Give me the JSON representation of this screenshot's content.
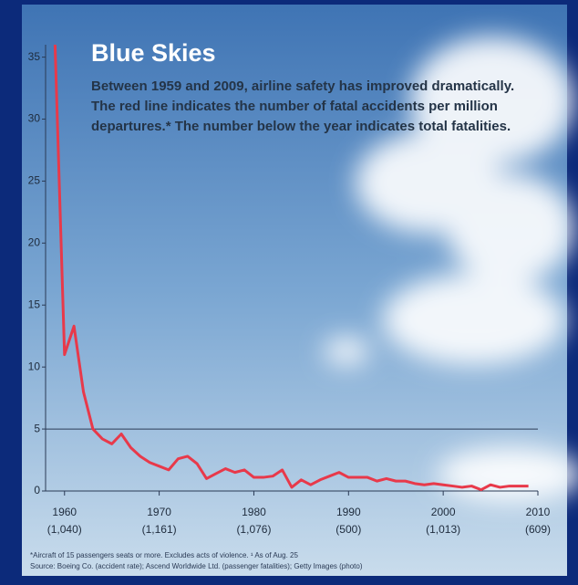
{
  "chart_data": {
    "type": "line",
    "title": "Blue Skies",
    "subtitle": "Between 1959 and 2009, airline safety has improved dramatically. The red line indicates the number of fatal accidents per million departures.* The number below the year indicates total fatalities.",
    "x": [
      1959,
      1960,
      1961,
      1962,
      1963,
      1964,
      1965,
      1966,
      1967,
      1968,
      1969,
      1970,
      1971,
      1972,
      1973,
      1974,
      1975,
      1976,
      1977,
      1978,
      1979,
      1980,
      1981,
      1982,
      1983,
      1984,
      1985,
      1986,
      1987,
      1988,
      1989,
      1990,
      1991,
      1992,
      1993,
      1994,
      1995,
      1996,
      1997,
      1998,
      1999,
      2000,
      2001,
      2002,
      2003,
      2004,
      2005,
      2006,
      2007,
      2008,
      2009
    ],
    "series": [
      {
        "color": "#e8394a",
        "values": [
          36,
          11,
          13.3,
          8,
          5,
          4.2,
          3.8,
          4.6,
          3.5,
          2.8,
          2.3,
          2.0,
          1.7,
          2.6,
          2.8,
          2.2,
          1.0,
          1.4,
          1.8,
          1.5,
          1.7,
          1.1,
          1.1,
          1.2,
          1.7,
          0.3,
          0.9,
          0.5,
          0.9,
          1.2,
          1.5,
          1.1,
          1.1,
          1.1,
          0.8,
          1.0,
          0.8,
          0.8,
          0.6,
          0.5,
          0.6,
          0.5,
          0.4,
          0.3,
          0.4,
          0.1,
          0.5,
          0.3,
          0.4,
          0.4,
          0.4
        ]
      }
    ],
    "xlim": [
      1958,
      2010
    ],
    "ylim": [
      0,
      36
    ],
    "xticks": [
      1960,
      1970,
      1980,
      1990,
      2000,
      2010
    ],
    "xtick_fatalities": [
      "(1,040)",
      "(1,161)",
      "(1,076)",
      "(500)",
      "(1,013)",
      "(609)"
    ],
    "yticks": [
      0,
      5,
      10,
      15,
      20,
      25,
      30,
      35
    ],
    "reference_line": 5,
    "footnotes": [
      "*Aircraft of 15 passengers seats or more. Excludes acts of violence. ¹ As of Aug. 25",
      "Source: Boeing Co. (accident rate); Ascend Worldwide Ltd. (passenger fatalities); Getty Images (photo)"
    ]
  }
}
